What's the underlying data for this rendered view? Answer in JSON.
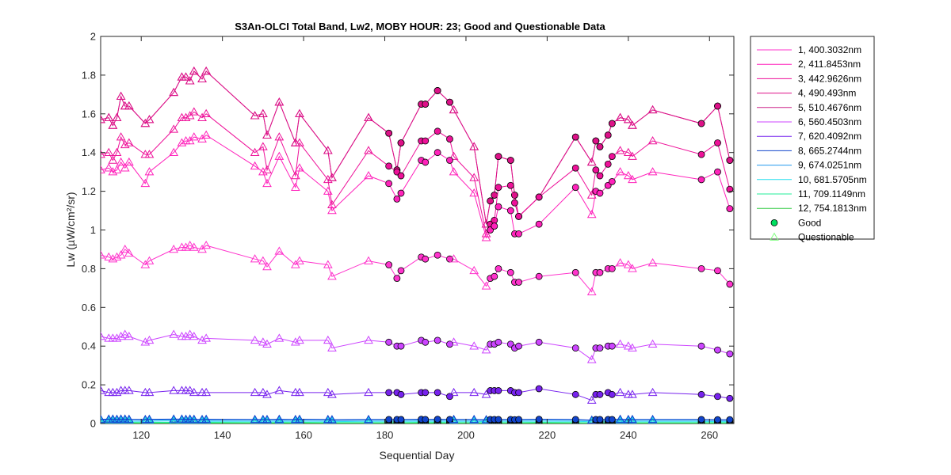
{
  "chart_data": {
    "type": "line",
    "title": "S3An-OLCI Total Band,  Lw2, MOBY HOUR: 23;  Good and Questionable Data",
    "xlabel": "Sequential Day",
    "ylabel": "Lw (µW/cm²/sr)",
    "xlim": [
      110,
      266
    ],
    "ylim": [
      0,
      2
    ],
    "xticks": [
      "120",
      "140",
      "160",
      "180",
      "200",
      "220",
      "240",
      "260"
    ],
    "xtick_values": [
      120,
      140,
      160,
      180,
      200,
      220,
      240,
      260
    ],
    "yticks": [
      "0",
      "0.2",
      "0.4",
      "0.6",
      "0.8",
      "1",
      "1.2",
      "1.4",
      "1.6",
      "1.8",
      "2"
    ],
    "ytick_values": [
      0,
      0.2,
      0.4,
      0.6,
      0.8,
      1.0,
      1.2,
      1.4,
      1.6,
      1.8,
      2.0
    ],
    "grid": false,
    "legend_position": "outside-right",
    "x": [
      110,
      112,
      113,
      114,
      115,
      116,
      117,
      121,
      122,
      128,
      130,
      131,
      132,
      133,
      135,
      136,
      148,
      150,
      151,
      154,
      158,
      159,
      166,
      167,
      176,
      181,
      183,
      184,
      189,
      190,
      193,
      196,
      197,
      202,
      205,
      206,
      207,
      208,
      211,
      212,
      213,
      218,
      227,
      231,
      232,
      233,
      235,
      236,
      238,
      240,
      241,
      246,
      258,
      262,
      265
    ],
    "quality": [
      "Q",
      "Q",
      "Q",
      "Q",
      "Q",
      "Q",
      "Q",
      "Q",
      "Q",
      "Q",
      "Q",
      "Q",
      "Q",
      "Q",
      "Q",
      "Q",
      "Q",
      "Q",
      "Q",
      "Q",
      "Q",
      "Q",
      "Q",
      "Q",
      "Q",
      "G",
      "G",
      "G",
      "G",
      "G",
      "G",
      "G",
      "Q",
      "Q",
      "Q",
      "G",
      "G",
      "G",
      "G",
      "G",
      "G",
      "G",
      "G",
      "Q",
      "G",
      "G",
      "G",
      "G",
      "Q",
      "Q",
      "Q",
      "Q",
      "G",
      "G",
      "G"
    ],
    "legend": {
      "good_label": "Good",
      "questionable_label": "Questionable",
      "good_color": "#00e060",
      "questionable_color": "#80ff80"
    },
    "series": [
      {
        "name": "1, 400.3032nm",
        "color": "#ff33cc",
        "values": [
          0.87,
          0.86,
          0.85,
          0.86,
          0.87,
          0.9,
          0.88,
          0.82,
          0.84,
          0.9,
          0.91,
          0.91,
          0.92,
          0.91,
          0.9,
          0.92,
          0.85,
          0.84,
          0.81,
          0.89,
          0.82,
          0.84,
          0.82,
          0.76,
          0.84,
          0.82,
          0.75,
          0.79,
          0.86,
          0.85,
          0.87,
          0.85,
          0.85,
          0.79,
          0.71,
          0.75,
          0.76,
          0.8,
          0.78,
          0.73,
          0.73,
          0.76,
          0.78,
          0.68,
          0.78,
          0.78,
          0.8,
          0.8,
          0.83,
          0.82,
          0.8,
          0.83,
          0.8,
          0.79,
          0.72
        ]
      },
      {
        "name": "2, 411.8453nm",
        "color": "#ff22bb",
        "values": [
          1.31,
          1.32,
          1.3,
          1.31,
          1.35,
          1.32,
          1.35,
          1.24,
          1.3,
          1.4,
          1.45,
          1.46,
          1.46,
          1.48,
          1.47,
          1.49,
          1.33,
          1.3,
          1.24,
          1.38,
          1.22,
          1.32,
          1.2,
          1.1,
          1.28,
          1.24,
          1.16,
          1.19,
          1.36,
          1.35,
          1.4,
          1.36,
          1.3,
          1.19,
          0.96,
          1.0,
          1.02,
          1.12,
          1.1,
          0.98,
          0.98,
          1.03,
          1.22,
          1.08,
          1.2,
          1.19,
          1.23,
          1.25,
          1.3,
          1.28,
          1.26,
          1.3,
          1.26,
          1.3,
          1.11
        ]
      },
      {
        "name": "3, 442.9626nm",
        "color": "#ee1199",
        "values": [
          1.39,
          1.4,
          1.36,
          1.4,
          1.48,
          1.44,
          1.45,
          1.39,
          1.39,
          1.52,
          1.58,
          1.58,
          1.59,
          1.61,
          1.58,
          1.6,
          1.4,
          1.43,
          1.31,
          1.48,
          1.28,
          1.45,
          1.26,
          1.13,
          1.41,
          1.33,
          1.3,
          1.28,
          1.46,
          1.46,
          1.51,
          1.47,
          1.38,
          1.27,
          0.98,
          1.03,
          1.05,
          1.22,
          1.23,
          1.14,
          1.07,
          1.17,
          1.32,
          1.18,
          1.31,
          1.28,
          1.34,
          1.38,
          1.41,
          1.4,
          1.38,
          1.46,
          1.39,
          1.45,
          1.21
        ]
      },
      {
        "name": "4,  490.493nm",
        "color": "#dd1188",
        "values": [
          1.57,
          1.58,
          1.54,
          1.58,
          1.69,
          1.64,
          1.64,
          1.55,
          1.57,
          1.71,
          1.79,
          1.79,
          1.77,
          1.82,
          1.78,
          1.82,
          1.59,
          1.6,
          1.49,
          1.66,
          1.45,
          1.6,
          1.41,
          1.27,
          1.58,
          1.5,
          1.31,
          1.45,
          1.65,
          1.65,
          1.72,
          1.66,
          1.62,
          1.43,
          1.03,
          1.15,
          1.18,
          1.38,
          1.36,
          1.18,
          1.07,
          1.17,
          1.48,
          1.35,
          1.46,
          1.43,
          1.49,
          1.55,
          1.58,
          1.57,
          1.54,
          1.62,
          1.55,
          1.64,
          1.36
        ]
      },
      {
        "name": "5, 510.4676nm",
        "color": "#cc2288",
        "values": [
          1.57,
          1.58,
          1.54,
          1.58,
          1.69,
          1.64,
          1.64,
          1.55,
          1.57,
          1.71,
          1.79,
          1.79,
          1.77,
          1.82,
          1.78,
          1.82,
          1.59,
          1.6,
          1.49,
          1.66,
          1.45,
          1.6,
          1.41,
          1.27,
          1.58,
          1.5,
          1.31,
          1.45,
          1.65,
          1.65,
          1.72,
          1.66,
          1.62,
          1.43,
          1.03,
          1.15,
          1.18,
          1.38,
          1.36,
          1.18,
          1.07,
          1.17,
          1.48,
          1.35,
          1.46,
          1.43,
          1.49,
          1.55,
          1.58,
          1.57,
          1.54,
          1.62,
          1.55,
          1.64,
          1.36
        ]
      },
      {
        "name": "6, 560.4503nm",
        "color": "#cc44ff",
        "values": [
          0.45,
          0.44,
          0.44,
          0.44,
          0.45,
          0.46,
          0.45,
          0.42,
          0.43,
          0.46,
          0.45,
          0.45,
          0.46,
          0.45,
          0.43,
          0.44,
          0.43,
          0.42,
          0.41,
          0.44,
          0.42,
          0.43,
          0.43,
          0.39,
          0.43,
          0.42,
          0.4,
          0.4,
          0.43,
          0.42,
          0.43,
          0.41,
          0.42,
          0.4,
          0.38,
          0.41,
          0.41,
          0.42,
          0.41,
          0.39,
          0.4,
          0.42,
          0.39,
          0.33,
          0.39,
          0.39,
          0.4,
          0.4,
          0.41,
          0.4,
          0.39,
          0.41,
          0.4,
          0.38,
          0.36
        ]
      },
      {
        "name": "7, 620.4092nm",
        "color": "#7722ee",
        "values": [
          0.17,
          0.16,
          0.16,
          0.16,
          0.17,
          0.17,
          0.17,
          0.16,
          0.16,
          0.17,
          0.17,
          0.17,
          0.17,
          0.16,
          0.16,
          0.16,
          0.16,
          0.16,
          0.15,
          0.17,
          0.16,
          0.16,
          0.16,
          0.15,
          0.16,
          0.16,
          0.16,
          0.15,
          0.16,
          0.16,
          0.16,
          0.14,
          0.16,
          0.16,
          0.15,
          0.17,
          0.17,
          0.17,
          0.17,
          0.16,
          0.16,
          0.18,
          0.15,
          0.12,
          0.15,
          0.15,
          0.16,
          0.15,
          0.16,
          0.15,
          0.15,
          0.16,
          0.15,
          0.14,
          0.13
        ]
      },
      {
        "name": "8, 665.2744nm",
        "color": "#1144cc",
        "values": [
          0.022,
          0.023,
          0.023,
          0.022,
          0.023,
          0.023,
          0.022,
          0.021,
          0.022,
          0.023,
          0.023,
          0.022,
          0.023,
          0.022,
          0.021,
          0.022,
          0.021,
          0.021,
          0.021,
          0.022,
          0.021,
          0.022,
          0.021,
          0.02,
          0.021,
          0.021,
          0.021,
          0.021,
          0.022,
          0.021,
          0.022,
          0.021,
          0.021,
          0.021,
          0.02,
          0.021,
          0.021,
          0.021,
          0.021,
          0.02,
          0.021,
          0.022,
          0.021,
          0.018,
          0.021,
          0.021,
          0.021,
          0.021,
          0.022,
          0.021,
          0.021,
          0.021,
          0.021,
          0.02,
          0.02
        ]
      },
      {
        "name": "9, 674.0251nm",
        "color": "#2299ee",
        "values": [
          0.018,
          0.019,
          0.019,
          0.018,
          0.019,
          0.019,
          0.018,
          0.017,
          0.018,
          0.019,
          0.019,
          0.018,
          0.019,
          0.018,
          0.017,
          0.018,
          0.017,
          0.017,
          0.017,
          0.018,
          0.017,
          0.018,
          0.017,
          0.016,
          0.017,
          0.017,
          0.017,
          0.017,
          0.018,
          0.017,
          0.018,
          0.017,
          0.017,
          0.017,
          0.016,
          0.017,
          0.017,
          0.017,
          0.017,
          0.016,
          0.017,
          0.018,
          0.017,
          0.015,
          0.017,
          0.017,
          0.017,
          0.017,
          0.018,
          0.017,
          0.017,
          0.017,
          0.017,
          0.016,
          0.016
        ]
      },
      {
        "name": "10, 681.5705nm",
        "color": "#22ddee",
        "values": [
          0.012,
          0.013,
          0.013,
          0.012,
          0.013,
          0.013,
          0.012,
          0.011,
          0.012,
          0.013,
          0.013,
          0.012,
          0.013,
          0.012,
          0.011,
          0.012,
          0.011,
          0.011,
          0.011,
          0.012,
          0.011,
          0.012,
          0.011,
          0.01,
          0.011,
          0.011,
          0.011,
          0.011,
          0.012,
          0.011,
          0.012,
          0.011,
          0.011,
          0.011,
          0.01,
          0.011,
          0.011,
          0.011,
          0.011,
          0.01,
          0.011,
          0.012,
          0.011,
          0.009,
          0.011,
          0.011,
          0.011,
          0.011,
          0.012,
          0.011,
          0.011,
          0.011,
          0.011,
          0.01,
          0.01
        ]
      },
      {
        "name": "11, 709.1149nm",
        "color": "#22ee99",
        "values": [
          0.006,
          0.006,
          0.006,
          0.006,
          0.006,
          0.006,
          0.006,
          0.005,
          0.006,
          0.006,
          0.006,
          0.006,
          0.006,
          0.006,
          0.005,
          0.006,
          0.005,
          0.005,
          0.005,
          0.006,
          0.005,
          0.006,
          0.005,
          0.005,
          0.005,
          0.005,
          0.005,
          0.005,
          0.006,
          0.005,
          0.006,
          0.005,
          0.005,
          0.005,
          0.005,
          0.005,
          0.005,
          0.005,
          0.005,
          0.005,
          0.005,
          0.006,
          0.005,
          0.004,
          0.005,
          0.005,
          0.005,
          0.005,
          0.006,
          0.005,
          0.005,
          0.005,
          0.005,
          0.005,
          0.005
        ]
      },
      {
        "name": "12, 754.1813nm",
        "color": "#33cc44",
        "values": [
          0.002,
          0.002,
          0.002,
          0.002,
          0.002,
          0.002,
          0.002,
          0.002,
          0.002,
          0.002,
          0.002,
          0.002,
          0.002,
          0.002,
          0.002,
          0.002,
          0.002,
          0.002,
          0.002,
          0.002,
          0.002,
          0.002,
          0.002,
          0.002,
          0.002,
          0.002,
          0.002,
          0.002,
          0.002,
          0.002,
          0.002,
          0.002,
          0.002,
          0.002,
          0.002,
          0.002,
          0.002,
          0.002,
          0.002,
          0.002,
          0.002,
          0.002,
          0.002,
          0.002,
          0.002,
          0.002,
          0.002,
          0.002,
          0.002,
          0.002,
          0.002,
          0.002,
          0.002,
          0.002,
          0.002
        ]
      }
    ]
  }
}
